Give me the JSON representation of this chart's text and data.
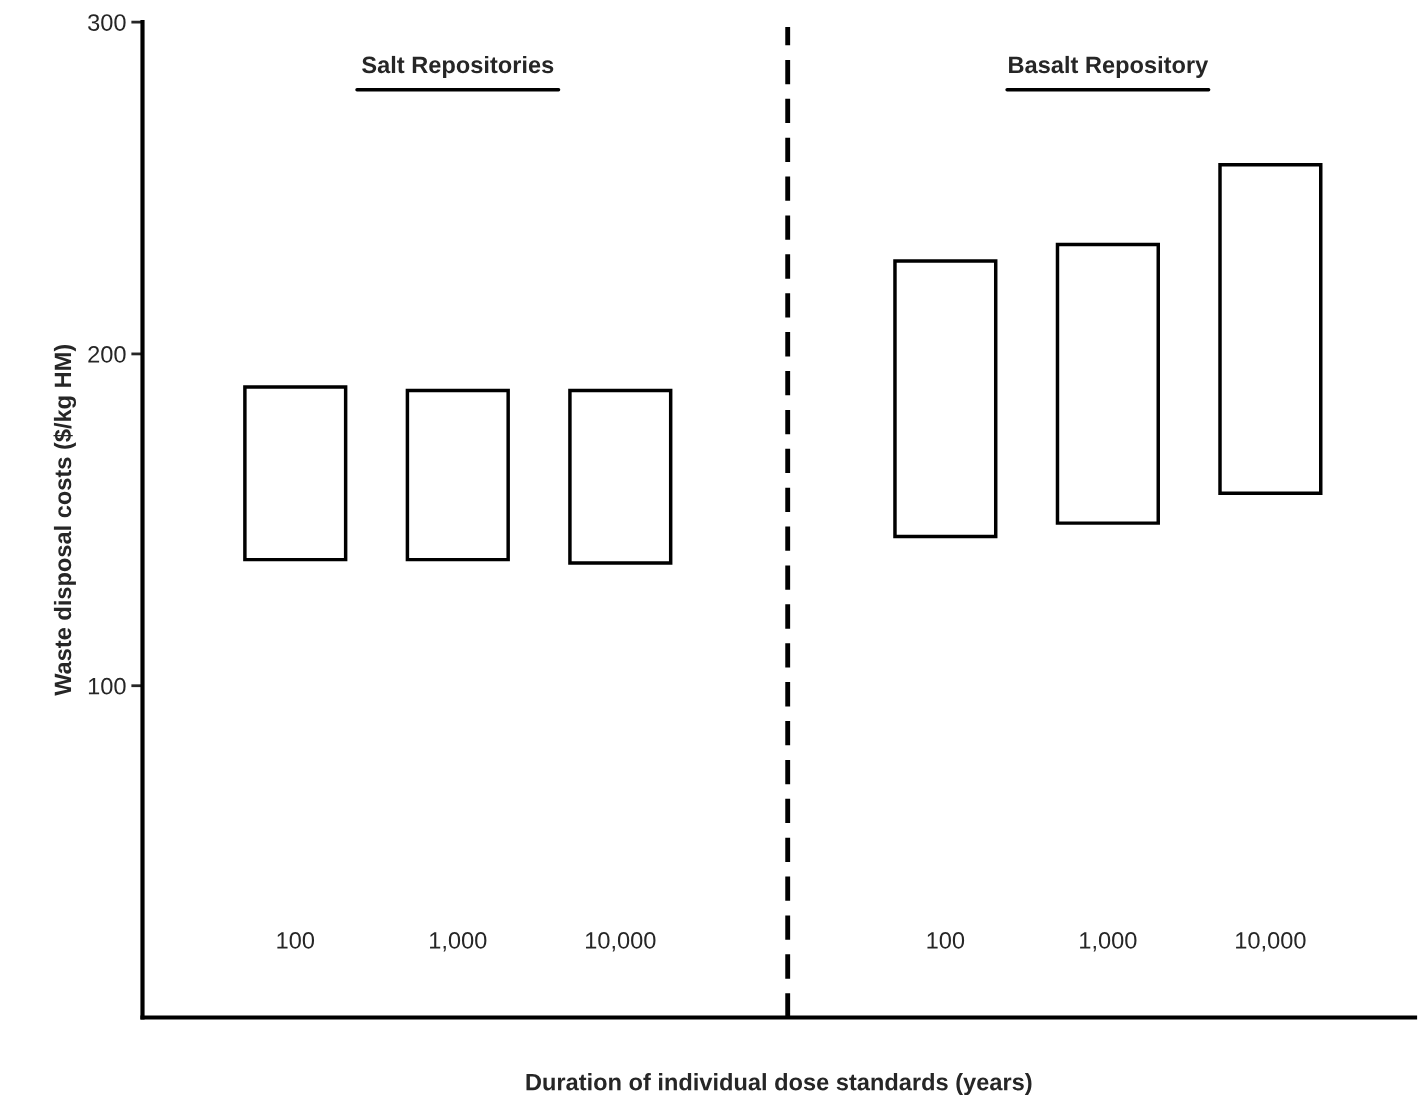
{
  "chart_data": {
    "type": "bar",
    "xlabel": "Duration of individual dose standards (years)",
    "ylabel": "Waste disposal costs ($/kg HM)",
    "categories": [
      "100",
      "1,000",
      "10,000",
      null,
      "100",
      "1,000",
      "10,000"
    ],
    "values": [
      52,
      51,
      52,
      null,
      83,
      84,
      99
    ],
    "base": [
      138,
      138,
      137,
      null,
      145,
      149,
      158
    ],
    "color": "#ffffff",
    "ylim": [
      0,
      300
    ],
    "yticks": [
      100,
      200,
      300
    ],
    "annotations": [
      "Salt Repositories",
      "Basalt Repository"
    ],
    "legend": false
  }
}
